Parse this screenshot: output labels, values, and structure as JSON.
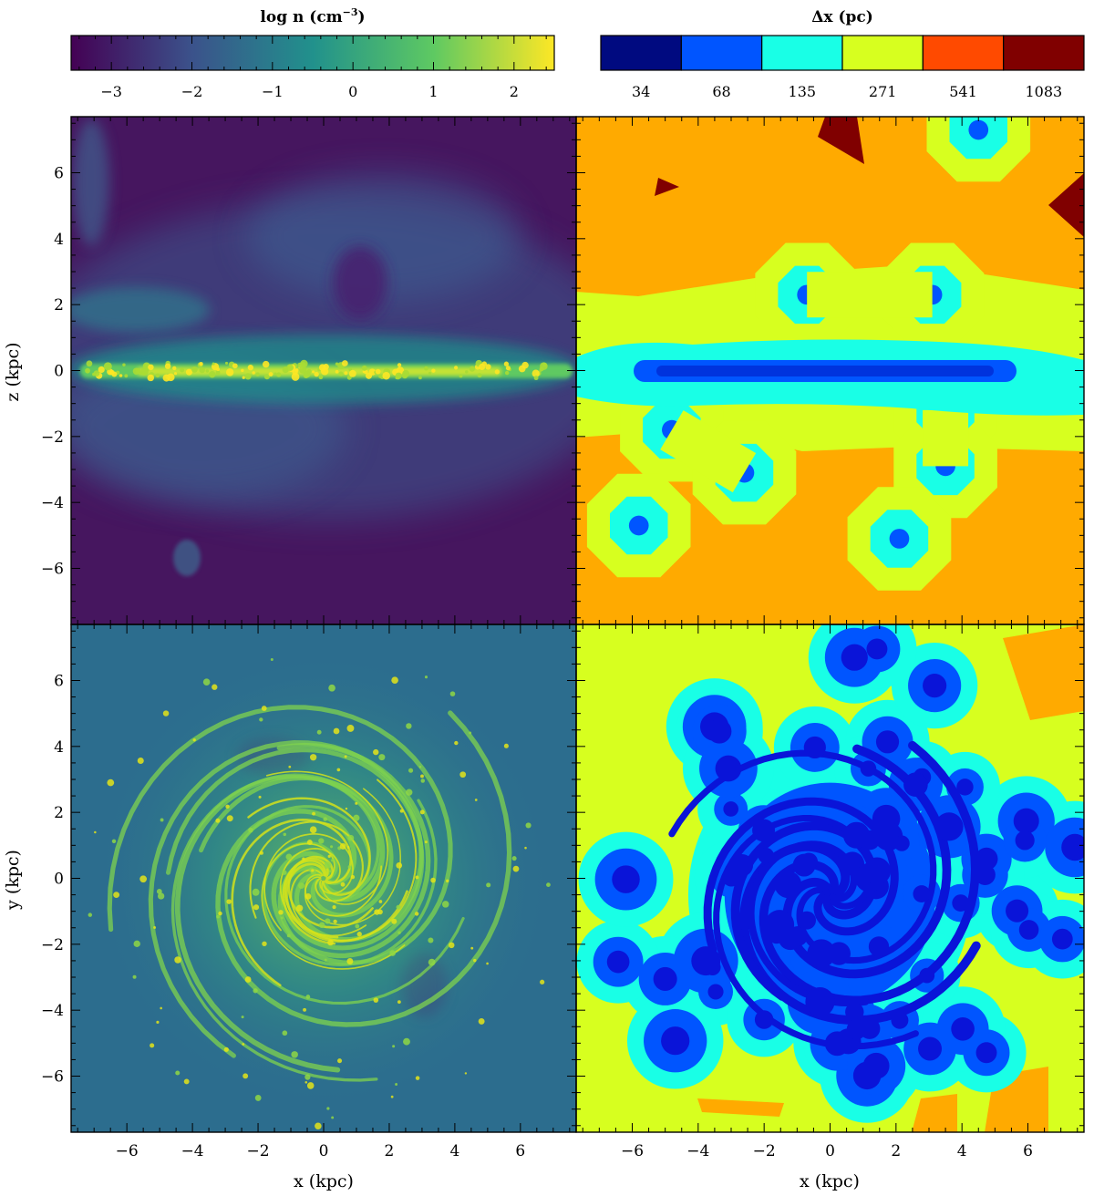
{
  "chart_data": {
    "type": "heatmap",
    "colorbars": {
      "density": {
        "title": "log n (cm",
        "title_exponent": "−3",
        "title_close": ")",
        "range": [
          -3.5,
          2.5
        ],
        "ticks": [
          "−3",
          "−2",
          "−1",
          "0",
          "1",
          "2"
        ],
        "tick_values": [
          -3,
          -2,
          -1,
          0,
          1,
          2
        ],
        "colormap": [
          "#440154",
          "#3b528b",
          "#21918c",
          "#5ec962",
          "#fde725"
        ]
      },
      "resolution": {
        "title": "Δx (pc)",
        "levels": [
          "34",
          "68",
          "135",
          "271",
          "541",
          "1083"
        ],
        "level_colors": [
          "#000a80",
          "#0055ff",
          "#19ffe6",
          "#d7ff1f",
          "#ff4a00",
          "#800000"
        ]
      }
    },
    "panels": [
      {
        "id": "edge-on-density",
        "ylabel": "z (kpc)",
        "view": "edge-on"
      },
      {
        "id": "edge-on-resolution",
        "view": "edge-on"
      },
      {
        "id": "face-on-density",
        "ylabel": "y (kpc)",
        "xlabel": "x (kpc)",
        "view": "face-on"
      },
      {
        "id": "face-on-resolution",
        "xlabel": "x (kpc)",
        "view": "face-on"
      }
    ],
    "xlim": [
      -7.7,
      7.7
    ],
    "ylim": [
      -7.7,
      7.7
    ],
    "major_ticks": [
      "−6",
      "−4",
      "−2",
      "0",
      "2",
      "4",
      "6"
    ],
    "major_tick_values": [
      -6,
      -4,
      -2,
      0,
      2,
      4,
      6
    ],
    "minor_tick_step": 0.5,
    "features": {
      "edge_on_density": {
        "background_log_n": -3.1,
        "halo_log_n": -1.8,
        "disk_log_n": 1.8,
        "disk_extent_x": [
          -7.5,
          7.5
        ],
        "disk_center_z": 0
      },
      "edge_on_resolution": {
        "background_dx_pc": 541,
        "refined_blobs": [
          {
            "x": 4.5,
            "z": 7.3
          },
          {
            "x": -0.7,
            "z": 2.3
          },
          {
            "x": 3.1,
            "z": 2.3
          },
          {
            "x": -4.8,
            "z": -1.8
          },
          {
            "x": -2.6,
            "z": -3.1
          },
          {
            "x": 3.5,
            "z": -1.2
          },
          {
            "x": 3.5,
            "z": -2.9
          },
          {
            "x": -5.8,
            "z": -4.7
          },
          {
            "x": 2.1,
            "z": -5.1
          }
        ],
        "coarsest_patches": [
          {
            "x": 0.9,
            "z": 7.2
          },
          {
            "x": -4.9,
            "z": 5.6
          },
          {
            "x": 7.3,
            "z": 4.9
          }
        ]
      },
      "face_on_density": {
        "background_log_n": -1.5,
        "arm_log_n": 1.6,
        "center": [
          0,
          0
        ]
      },
      "face_on_resolution": {
        "background_dx_pc": 271,
        "center": [
          0,
          -0.5
        ]
      }
    }
  }
}
